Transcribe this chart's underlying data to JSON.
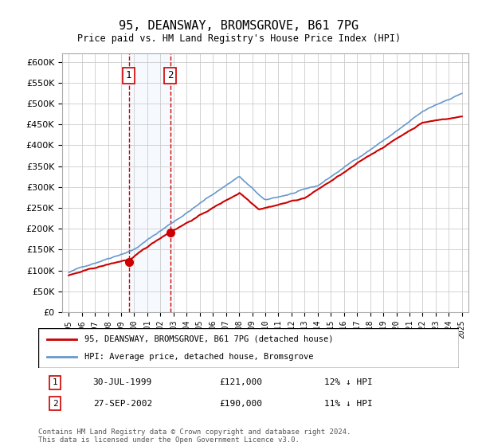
{
  "title": "95, DEANSWAY, BROMSGROVE, B61 7PG",
  "subtitle": "Price paid vs. HM Land Registry's House Price Index (HPI)",
  "legend_line1": "95, DEANSWAY, BROMSGROVE, B61 7PG (detached house)",
  "legend_line2": "HPI: Average price, detached house, Bromsgrove",
  "transaction1_label": "1",
  "transaction1_date": "30-JUL-1999",
  "transaction1_price": "£121,000",
  "transaction1_hpi": "12% ↓ HPI",
  "transaction2_label": "2",
  "transaction2_date": "27-SEP-2002",
  "transaction2_price": "£190,000",
  "transaction2_hpi": "11% ↓ HPI",
  "footnote": "Contains HM Land Registry data © Crown copyright and database right 2024.\nThis data is licensed under the Open Government Licence v3.0.",
  "red_line_color": "#cc0000",
  "blue_line_color": "#6699cc",
  "shade_color": "#ddeeff",
  "marker1_x": 1999.58,
  "marker1_y": 121000,
  "marker2_x": 2002.75,
  "marker2_y": 190000,
  "ylim_min": 0,
  "ylim_max": 620000,
  "xlim_min": 1994.5,
  "xlim_max": 2025.5,
  "yticks": [
    0,
    50000,
    100000,
    150000,
    200000,
    250000,
    300000,
    350000,
    400000,
    450000,
    500000,
    550000,
    600000
  ],
  "xticks": [
    1995,
    1996,
    1997,
    1998,
    1999,
    2000,
    2001,
    2002,
    2003,
    2004,
    2005,
    2006,
    2007,
    2008,
    2009,
    2010,
    2011,
    2012,
    2013,
    2014,
    2015,
    2016,
    2017,
    2018,
    2019,
    2020,
    2021,
    2022,
    2023,
    2024,
    2025
  ]
}
